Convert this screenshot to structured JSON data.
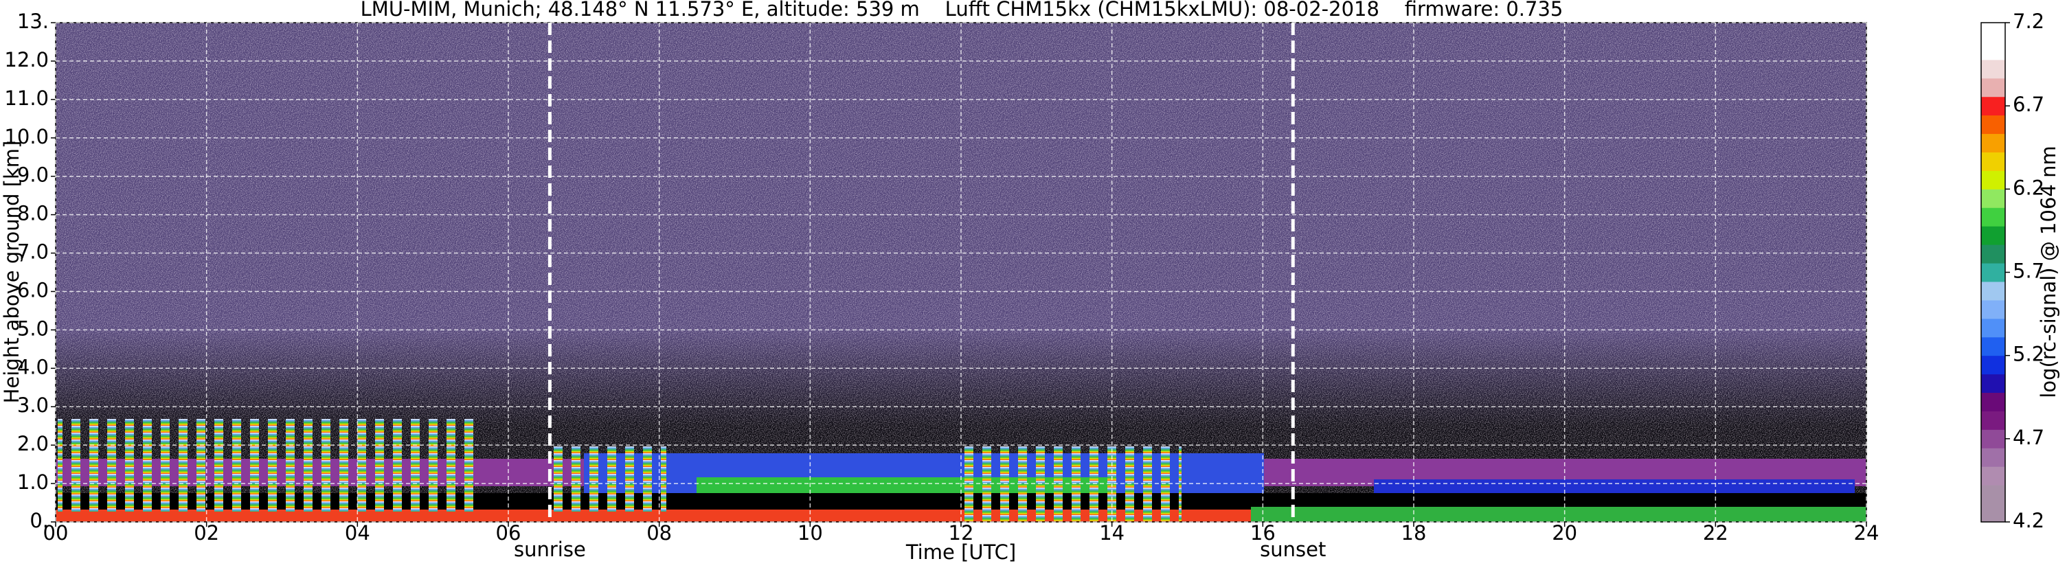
{
  "chart_data": {
    "type": "heatmap",
    "title": "LMU-MIM, Munich; 48.148° N 11.573° E, altitude: 539 m    Lufft CHM15kx (CHM15kxLMU): 08-02-2018    firmware: 0.735",
    "xlabel": "Time [UTC]",
    "ylabel": "Height above ground [km]",
    "xlim": [
      0,
      24
    ],
    "xticks": [
      {
        "value": 0,
        "label": "00"
      },
      {
        "value": 2,
        "label": "02"
      },
      {
        "value": 4,
        "label": "04"
      },
      {
        "value": 6,
        "label": "06"
      },
      {
        "value": 8,
        "label": "08"
      },
      10,
      12,
      14,
      16,
      18,
      20,
      22,
      24
    ],
    "ylim": [
      0,
      13
    ],
    "yticks": [
      {
        "value": 0,
        "label": "0."
      },
      {
        "value": 1,
        "label": "1.0"
      },
      {
        "value": 2,
        "label": "2.0"
      },
      {
        "value": 3,
        "label": "3.0"
      },
      {
        "value": 4,
        "label": "4.0"
      },
      {
        "value": 5,
        "label": "5.0"
      },
      {
        "value": 6,
        "label": "6.0"
      },
      {
        "value": 7,
        "label": "7.0"
      },
      {
        "value": 8,
        "label": "8.0"
      },
      {
        "value": 9,
        "label": "9.0"
      },
      {
        "value": 10,
        "label": "10.0"
      },
      {
        "value": 11,
        "label": "11.0"
      },
      {
        "value": 12,
        "label": "12.0"
      },
      {
        "value": 13,
        "label": "13."
      }
    ],
    "grid": true,
    "markers": [
      {
        "x": 6.55,
        "label": "sunrise"
      },
      {
        "x": 16.4,
        "label": "sunset"
      }
    ],
    "colorbar": {
      "label": "log(rc-signal) @ 1064 nm",
      "lim": [
        4.2,
        7.2
      ],
      "ticks": [
        4.2,
        4.7,
        5.2,
        5.7,
        6.2,
        6.7,
        7.2
      ],
      "colors": [
        "#a890a8",
        "#a890a8",
        "#b08cb0",
        "#a070a8",
        "#904a98",
        "#7a1a80",
        "#6a0a78",
        "#2010b0",
        "#1030e0",
        "#2060f0",
        "#5090f8",
        "#80b0f8",
        "#a0c8f0",
        "#30b0a0",
        "#209060",
        "#10a030",
        "#40d040",
        "#90e860",
        "#d0f000",
        "#f0d000",
        "#f8a000",
        "#f86000",
        "#f82020",
        "#e8b0b0",
        "#f0dada",
        "#ffffff",
        "#ffffff"
      ]
    }
  }
}
